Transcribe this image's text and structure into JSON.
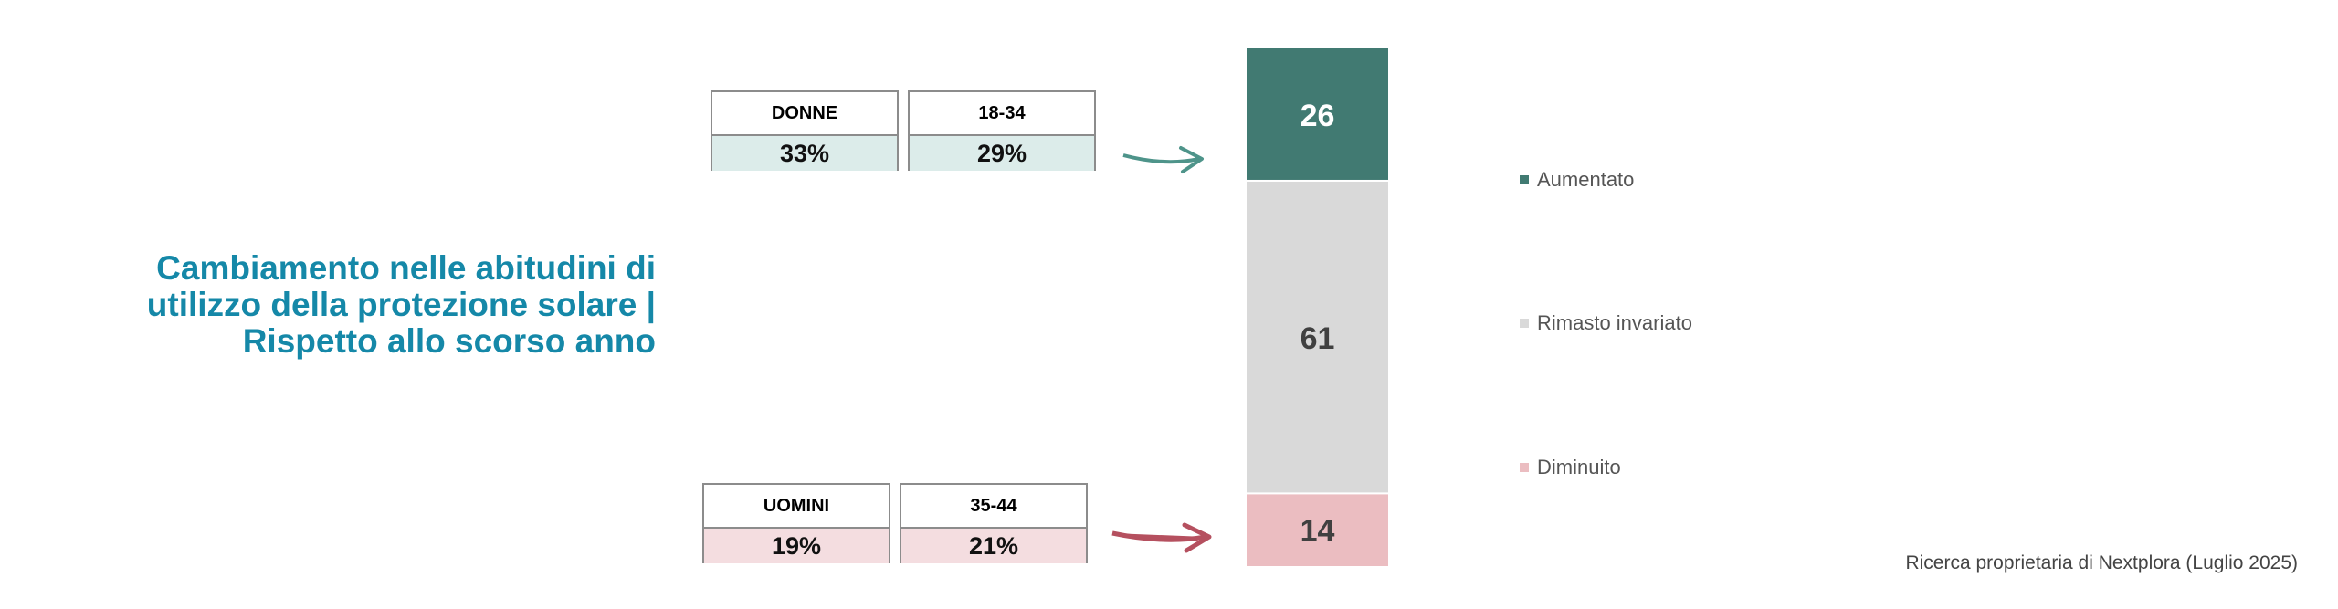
{
  "title": {
    "lines": [
      "Cambiamento nelle abitudini di",
      "utilizzo della protezione solare |",
      "Rispetto allo scorso anno"
    ]
  },
  "boxes": {
    "top": [
      {
        "header": "DONNE",
        "value": "33%"
      },
      {
        "header": "18-34",
        "value": "29%"
      }
    ],
    "bottom": [
      {
        "header": "UOMINI",
        "value": "19%"
      },
      {
        "header": "35-44",
        "value": "21%"
      }
    ]
  },
  "colors": {
    "title": "#1588a8",
    "aumentato": "#417a72",
    "rimasto": "#d9d9d9",
    "diminuito": "#ebbdc1",
    "arrow_green": "#4e948a",
    "arrow_red": "#b5505f"
  },
  "chart_data": {
    "type": "bar",
    "stacked": true,
    "categories": [
      ""
    ],
    "series": [
      {
        "name": "Aumentato",
        "values": [
          26
        ],
        "color": "#417a72",
        "label_color": "#ffffff"
      },
      {
        "name": "Rimasto invariato",
        "values": [
          61
        ],
        "color": "#d9d9d9",
        "label_color": "#404040"
      },
      {
        "name": "Diminuito",
        "values": [
          14
        ],
        "color": "#ebbdc1",
        "label_color": "#404040"
      }
    ],
    "stack_order": "top-to-bottom",
    "legend": "right",
    "grid": false,
    "title": "",
    "xlabel": "",
    "ylabel": ""
  },
  "source": "Ricerca proprietaria di Nextplora (Luglio 2025)"
}
